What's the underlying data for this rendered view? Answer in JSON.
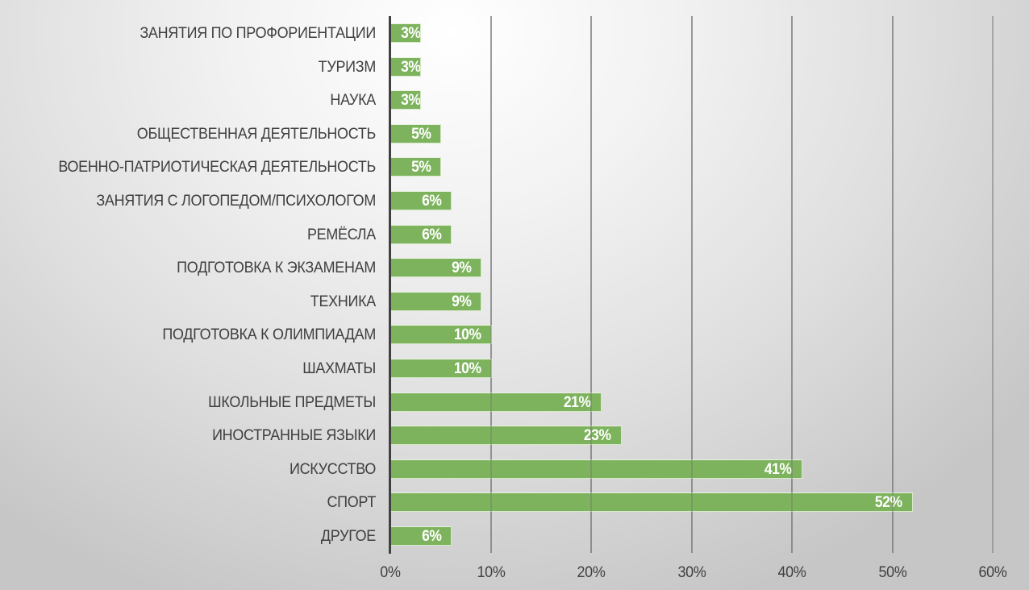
{
  "chart_data": {
    "type": "bar",
    "orientation": "horizontal",
    "title": "",
    "xlabel": "",
    "ylabel": "",
    "xlim": [
      0,
      60
    ],
    "x_ticks": [
      "0%",
      "10%",
      "20%",
      "30%",
      "40%",
      "50%",
      "60%"
    ],
    "grid": true,
    "legend": null,
    "bar_color": "#7db35d",
    "categories": [
      "ЗАНЯТИЯ ПО ПРОФОРИЕНТАЦИИ",
      "ТУРИЗМ",
      "НАУКА",
      "ОБЩЕСТВЕННАЯ ДЕЯТЕЛЬНОСТЬ",
      "ВОЕННО-ПАТРИОТИЧЕСКАЯ ДЕЯТЕЛЬНОСТЬ",
      "ЗАНЯТИЯ С ЛОГОПЕДОМ/ПСИХОЛОГОМ",
      "РЕМЁСЛА",
      "ПОДГОТОВКА К ЭКЗАМЕНАМ",
      "ТЕХНИКА",
      "ПОДГОТОВКА К ОЛИМПИАДАМ",
      "ШАХМАТЫ",
      "ШКОЛЬНЫЕ ПРЕДМЕТЫ",
      "ИНОСТРАННЫЕ ЯЗЫКИ",
      "ИСКУССТВО",
      "СПОРТ",
      "ДРУГОЕ"
    ],
    "values": [
      3,
      3,
      3,
      5,
      5,
      6,
      6,
      9,
      9,
      10,
      10,
      21,
      23,
      41,
      52,
      6
    ],
    "value_labels": [
      "3%",
      "3%",
      "3%",
      "5%",
      "5%",
      "6%",
      "6%",
      "9%",
      "9%",
      "10%",
      "10%",
      "21%",
      "23%",
      "41%",
      "52%",
      "6%"
    ]
  }
}
